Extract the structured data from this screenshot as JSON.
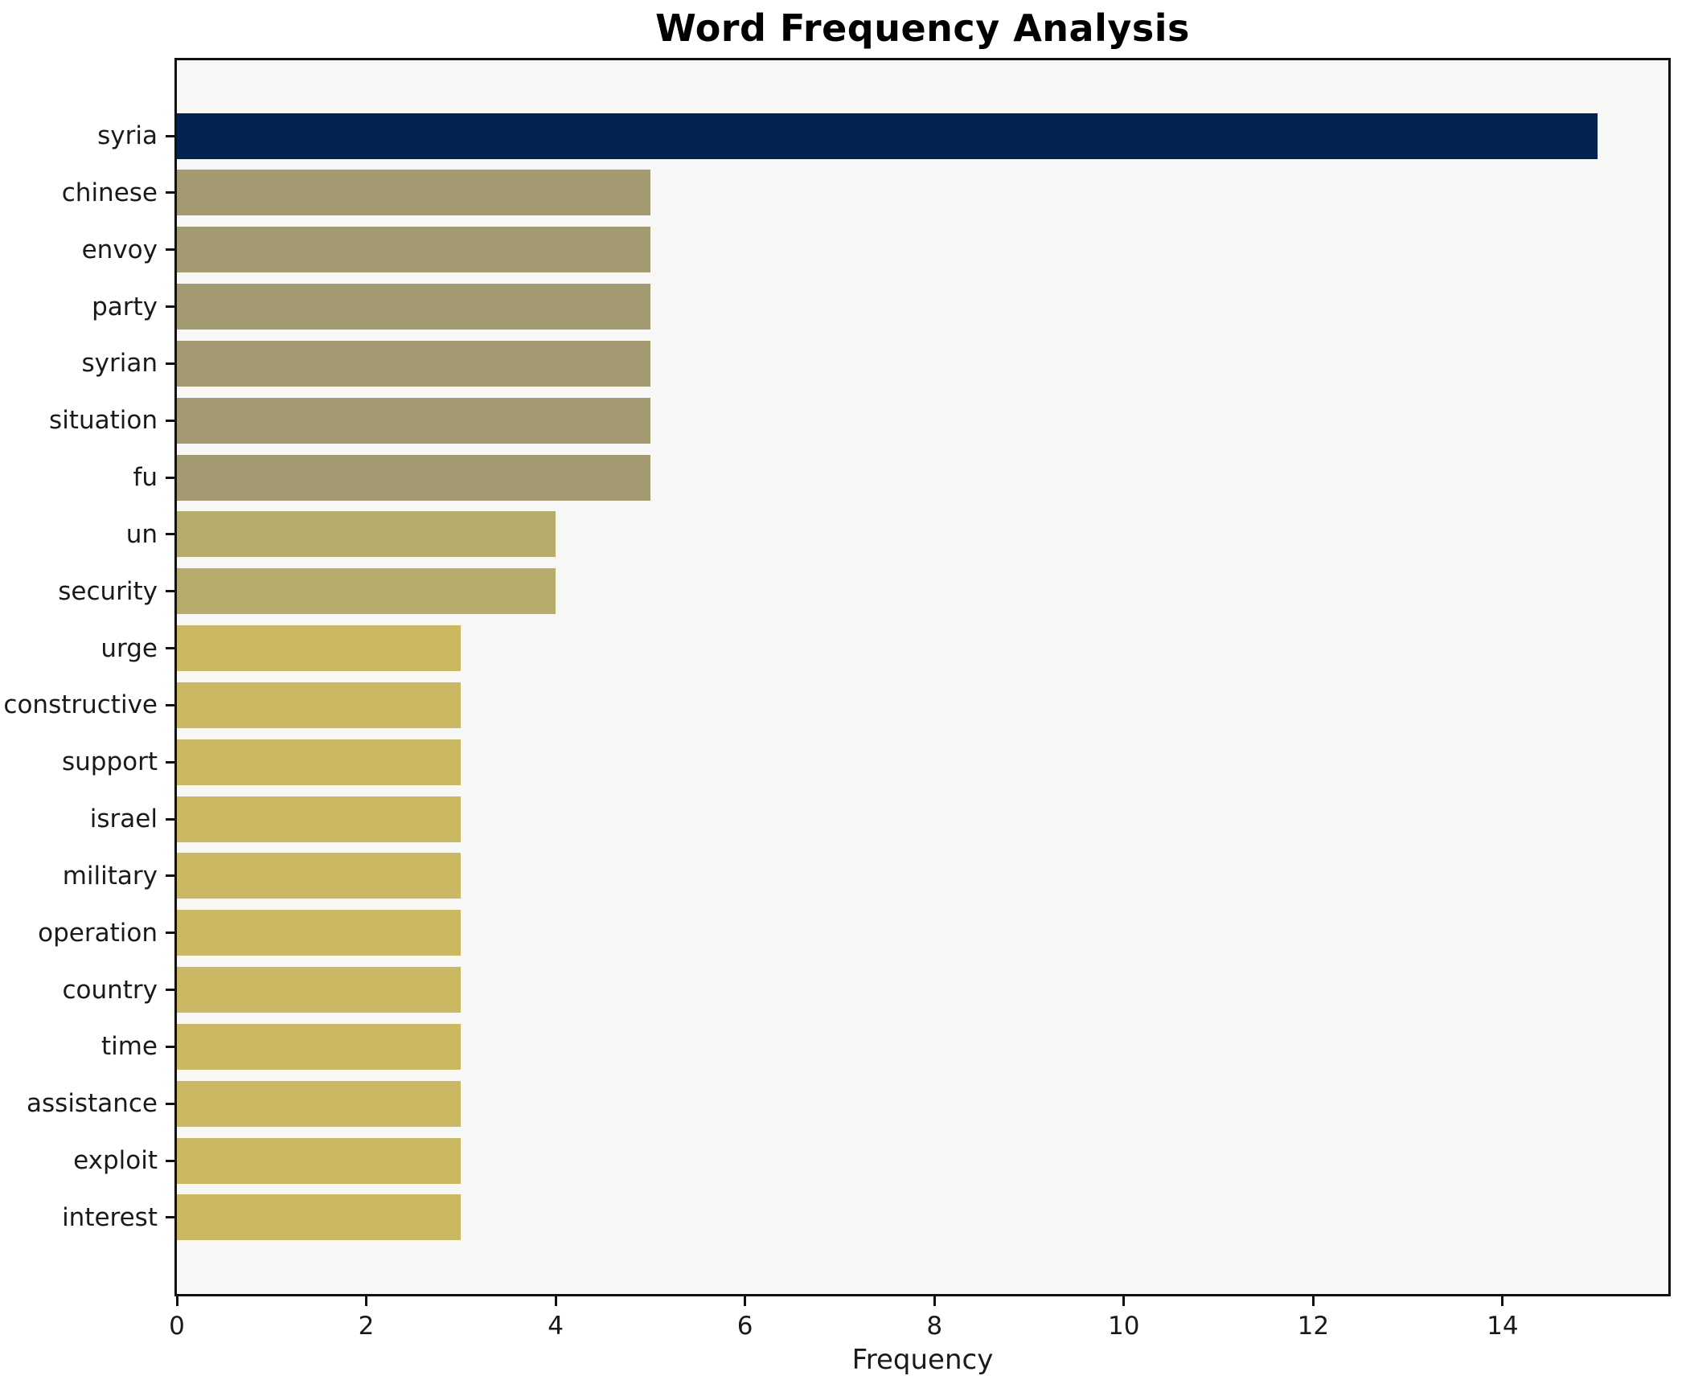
{
  "chart_data": {
    "type": "bar",
    "orientation": "horizontal",
    "title": "Word Frequency Analysis",
    "xlabel": "Frequency",
    "ylabel": "",
    "categories": [
      "syria",
      "chinese",
      "envoy",
      "party",
      "syrian",
      "situation",
      "fu",
      "un",
      "security",
      "urge",
      "constructive",
      "support",
      "israel",
      "military",
      "operation",
      "country",
      "time",
      "assistance",
      "exploit",
      "interest"
    ],
    "values": [
      15,
      5,
      5,
      5,
      5,
      5,
      5,
      4,
      4,
      3,
      3,
      3,
      3,
      3,
      3,
      3,
      3,
      3,
      3,
      3
    ],
    "bar_colors": [
      "#022350",
      "#a39a71",
      "#a39a71",
      "#a39a71",
      "#a39a71",
      "#a39a71",
      "#a39a71",
      "#b5ab6d",
      "#b5ab6d",
      "#cab863",
      "#cab863",
      "#cab863",
      "#cab863",
      "#cab863",
      "#cab863",
      "#cab863",
      "#cab863",
      "#cab863",
      "#cab863",
      "#cab863"
    ],
    "x_ticks": [
      0,
      2,
      4,
      6,
      8,
      10,
      12,
      14
    ],
    "xlim": [
      0,
      15.75
    ],
    "grid": false,
    "legend": "none",
    "plot_background": "#f7f7f6",
    "figure_background": "#ffffff"
  }
}
